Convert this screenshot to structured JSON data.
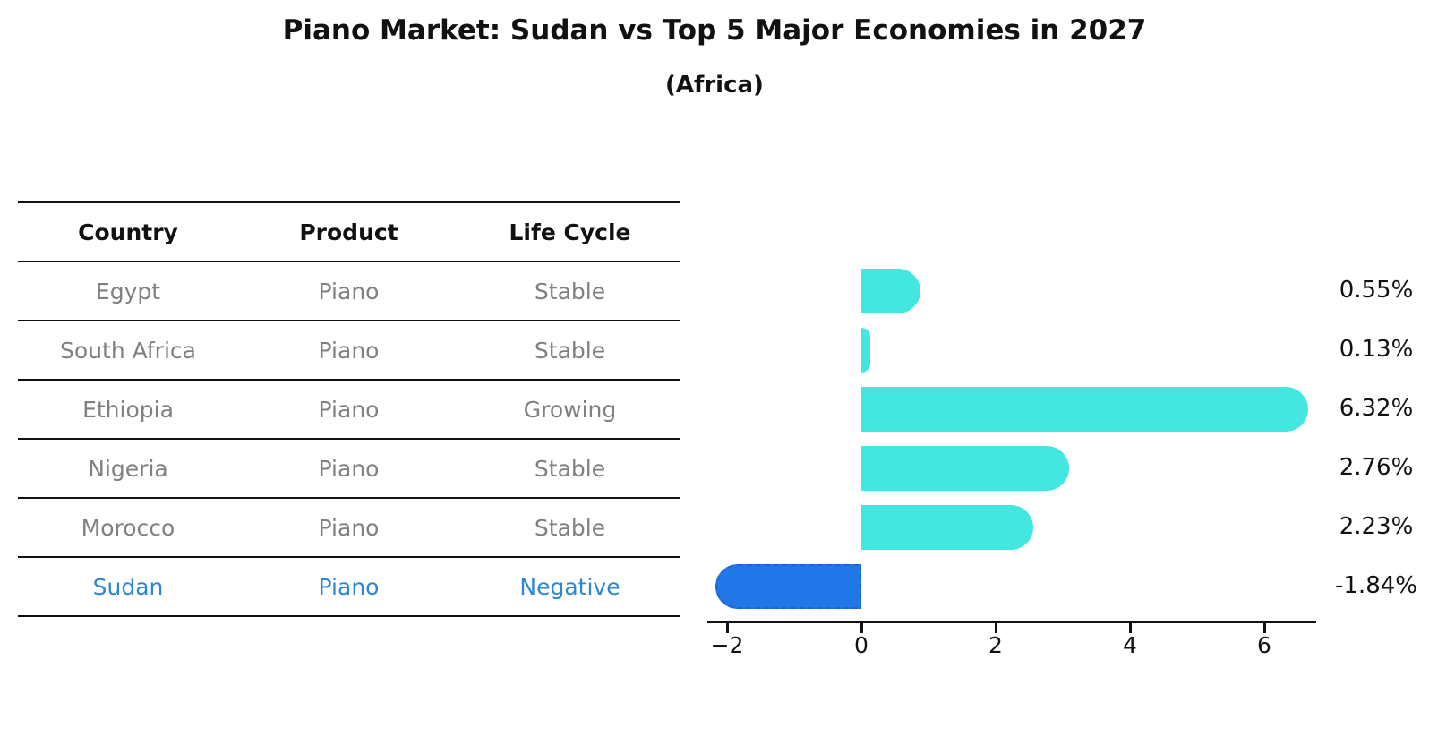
{
  "title": "Piano Market: Sudan vs Top 5 Major Economies in 2027",
  "subtitle": "(Africa)",
  "table": {
    "headers": [
      "Country",
      "Product",
      "Life Cycle"
    ],
    "rows": [
      {
        "country": "Egypt",
        "product": "Piano",
        "life_cycle": "Stable"
      },
      {
        "country": "South Africa",
        "product": "Piano",
        "life_cycle": "Stable"
      },
      {
        "country": "Ethiopia",
        "product": "Piano",
        "life_cycle": "Growing"
      },
      {
        "country": "Nigeria",
        "product": "Piano",
        "life_cycle": "Stable"
      },
      {
        "country": "Morocco",
        "product": "Piano",
        "life_cycle": "Stable"
      },
      {
        "country": "Sudan",
        "product": "Piano",
        "life_cycle": "Negative"
      }
    ]
  },
  "chart_data": {
    "type": "bar",
    "orientation": "horizontal",
    "title": "Piano Market: Sudan vs Top 5 Major Economies in 2027",
    "subtitle": "(Africa)",
    "categories": [
      "Egypt",
      "South Africa",
      "Ethiopia",
      "Nigeria",
      "Morocco",
      "Sudan"
    ],
    "values": [
      0.55,
      0.13,
      6.32,
      2.76,
      2.23,
      -1.84
    ],
    "value_labels": [
      "0.55%",
      "0.13%",
      "6.32%",
      "2.76%",
      "2.23%",
      "-1.84%"
    ],
    "x_ticks": [
      -2,
      0,
      2,
      4,
      6
    ],
    "x_tick_labels": [
      "−2",
      "0",
      "2",
      "4",
      "6"
    ],
    "xlim": [
      -2.3,
      6.77
    ],
    "xlabel": "",
    "ylabel": "",
    "grid": false,
    "legend_position": "none",
    "highlight_index": 5,
    "bar_color": "#44E7E0",
    "highlight_bar_color": "#2277E8"
  },
  "colors": {
    "accent_cyan": "#44E7E0",
    "accent_blue": "#2277E8",
    "accent_blue_dark": "#1B66CC",
    "highlight_text": "#2E86D6",
    "row_text": "#808080",
    "header_text": "#111111",
    "axis": "#111111"
  }
}
